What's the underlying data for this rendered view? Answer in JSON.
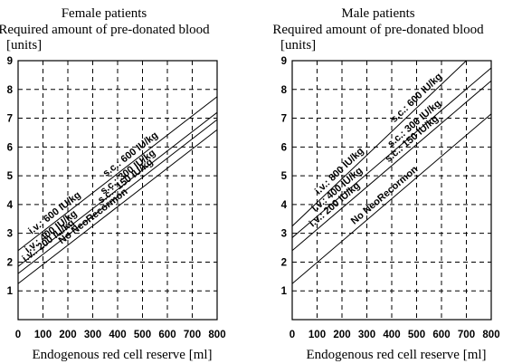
{
  "chart_data": [
    {
      "type": "line",
      "title": "Female patients",
      "subtitle": "Required amount of pre-donated blood",
      "ylabel": "[units]",
      "xlabel": "Endogenous red cell reserve [ml]",
      "xlim": [
        0,
        800
      ],
      "ylim": [
        0,
        9
      ],
      "x_ticks": [
        "0",
        "100",
        "200",
        "300",
        "400",
        "500",
        "600",
        "700",
        "800"
      ],
      "y_ticks": [
        "1",
        "2",
        "3",
        "4",
        "5",
        "6",
        "7",
        "8",
        "9"
      ],
      "grid": true,
      "series": [
        {
          "name": "No NeoRecormon",
          "x": [
            0,
            800
          ],
          "y": [
            1.25,
            6.6
          ]
        },
        {
          "name": "i.v.: 200 IU/kg   s.c.: 150 IU/kg",
          "x": [
            0,
            800
          ],
          "y": [
            1.6,
            6.95
          ]
        },
        {
          "name": "i.v.: 400 IU/kg   s.c.: 300 IU/kg",
          "x": [
            0,
            800
          ],
          "y": [
            1.85,
            7.2
          ]
        },
        {
          "name": "i.v.: 600 IU/kg   s.c.: 600 IU/kg",
          "x": [
            0,
            800
          ],
          "y": [
            2.4,
            7.75
          ]
        }
      ]
    },
    {
      "type": "line",
      "title": "Male patients",
      "subtitle": "Required amount of pre-donated blood",
      "ylabel": "[units]",
      "xlabel": "Endogenous red cell reserve [ml]",
      "xlim": [
        0,
        800
      ],
      "ylim": [
        0,
        9
      ],
      "x_ticks": [
        "0",
        "100",
        "200",
        "300",
        "400",
        "500",
        "600",
        "700",
        "800"
      ],
      "y_ticks": [
        "1",
        "2",
        "3",
        "4",
        "5",
        "6",
        "7",
        "8",
        "9"
      ],
      "grid": true,
      "series": [
        {
          "name": "No NeoRecormon",
          "x": [
            0,
            800
          ],
          "y": [
            1.25,
            7.15
          ]
        },
        {
          "name": "i.v.: 200 IU/kg   s.c.: 150 IU/kg",
          "x": [
            0,
            800
          ],
          "y": [
            2.4,
            8.3
          ]
        },
        {
          "name": "i.v.: 400 IU/kg   s.c.: 300 IU/kg",
          "x": [
            0,
            800
          ],
          "y": [
            2.85,
            8.75
          ]
        },
        {
          "name": "i.v.: 800 IU/kg   s.c.: 600 IU/kg",
          "x": [
            0,
            700
          ],
          "y": [
            3.25,
            9.0
          ]
        }
      ],
      "line_labels": [
        {
          "text": "i.v.: 800 IU/kg",
          "at_x": 210,
          "series": 3
        },
        {
          "text": "i.v.: 400 IU/kg",
          "at_x": 200,
          "series": 2
        },
        {
          "text": "i.v.: 200 IU/kg",
          "at_x": 190,
          "series": 1
        },
        {
          "text": "s.c.: 600 IU/kg",
          "at_x": 520,
          "series": 3
        },
        {
          "text": "s.c.: 300 IU/kg",
          "at_x": 510,
          "series": 2
        },
        {
          "text": "s.c.: 150 IU/kg",
          "at_x": 500,
          "series": 1
        },
        {
          "text": "No NeoRecormon",
          "at_x": 390,
          "series": 0
        }
      ]
    }
  ],
  "female_labels": [
    {
      "text": "i.v.: 600 IU/kg",
      "at_x": 165,
      "series": 3
    },
    {
      "text": "i.v.: 400 IU/kg",
      "at_x": 150,
      "series": 2
    },
    {
      "text": "i.v.: 200 IU/kg",
      "at_x": 140,
      "series": 1
    },
    {
      "text": "s.c.: 600 IU/kg",
      "at_x": 470,
      "series": 3
    },
    {
      "text": "s.c.: 300 IU/kg",
      "at_x": 460,
      "series": 2
    },
    {
      "text": "s.c.: 150 IU/kg",
      "at_x": 450,
      "series": 1
    },
    {
      "text": "No NeoRecormon",
      "at_x": 320,
      "series": 0
    }
  ]
}
